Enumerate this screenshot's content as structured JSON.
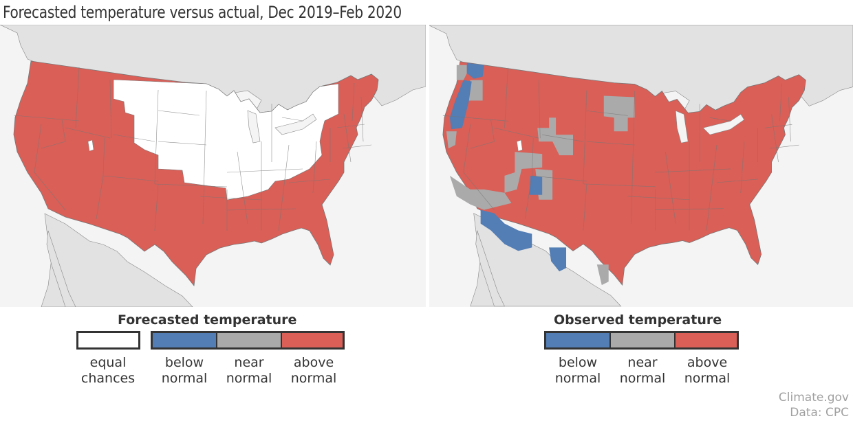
{
  "title": "Forecasted temperature versus actual, Dec 2019–Feb 2020",
  "colors": {
    "ocean": "#f4f4f4",
    "foreign_land": "#e2e2e2",
    "equal_chances": "#ffffff",
    "below_normal": "#527db5",
    "near_normal": "#aaaaaa",
    "above_normal": "#d95f57",
    "border": "#777777"
  },
  "maps": [
    {
      "id": "forecast",
      "legend_title": "Forecasted temperature",
      "categories": [
        {
          "key": "equal_chances",
          "line1": "equal",
          "line2": "chances"
        },
        {
          "key": "below_normal",
          "line1": "below",
          "line2": "normal"
        },
        {
          "key": "near_normal",
          "line1": "near",
          "line2": "normal"
        },
        {
          "key": "above_normal",
          "line1": "above",
          "line2": "normal"
        }
      ],
      "regions": {
        "above_normal": [
          "West (WA, OR, CA, NV, ID, western MT, UT, AZ, CO, NM)",
          "South (TX, OK, AR, LA, MS, AL, GA, FL, TN, SC, NC, VA, WV)",
          "Mid-Atlantic and Northeast (PA, NJ, MD, DE, NY east, New England)"
        ],
        "equal_chances": [
          "Northern Plains and Midwest (eastern MT, WY east, ND, SD, NE, KS north, MN, IA, MO, WI, IL, MI, IN, OH, KY, western NY)"
        ]
      }
    },
    {
      "id": "observed",
      "legend_title": "Observed temperature",
      "categories": [
        {
          "key": "below_normal",
          "line1": "below",
          "line2": "normal"
        },
        {
          "key": "near_normal",
          "line1": "near",
          "line2": "normal"
        },
        {
          "key": "above_normal",
          "line1": "above",
          "line2": "normal"
        }
      ],
      "regions": {
        "above_normal": [
          "Most of the contiguous US"
        ],
        "below_normal": [
          "Coastal Pacific Northwest",
          "NW Washington",
          "Southern Arizona",
          "Western Texas (Big Bend)",
          "Southern Utah pocket"
        ],
        "near_normal": [
          "Western Washington interior",
          "Northern California coast",
          "Southern Nevada / SE California",
          "Wyoming / Utah patches",
          "Southern North Dakota / northern South Dakota",
          "South Texas border"
        ]
      }
    }
  ],
  "credits": {
    "line1": "Climate.gov",
    "line2": "Data: CPC"
  }
}
